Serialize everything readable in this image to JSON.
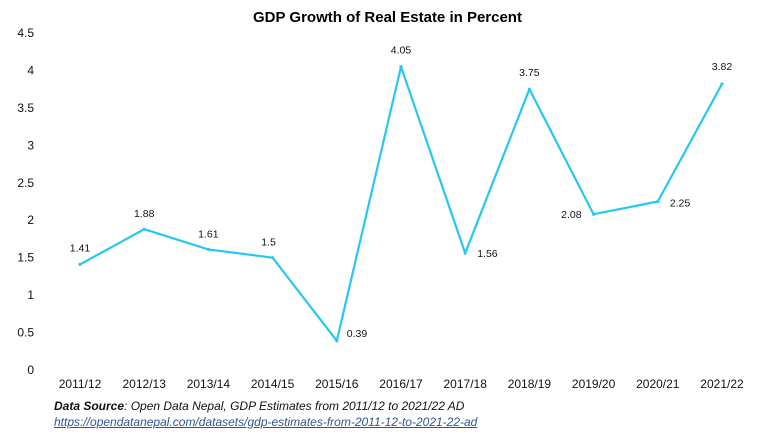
{
  "chart_data": {
    "type": "line",
    "title": "GDP Growth of Real Estate in Percent",
    "categories": [
      "2011/12",
      "2012/13",
      "2013/14",
      "2014/15",
      "2015/16",
      "2016/17",
      "2017/18",
      "2018/19",
      "2019/20",
      "2020/21",
      "2021/22"
    ],
    "values": [
      1.41,
      1.88,
      1.61,
      1.5,
      0.39,
      4.05,
      1.56,
      3.75,
      2.08,
      2.25,
      3.82
    ],
    "data_labels": [
      "1.41",
      "1.88",
      "1.61",
      "1.5",
      "0.39",
      "4.05",
      "1.56",
      "3.75",
      "2.08",
      "2.25",
      "3.82"
    ],
    "y_ticks": [
      0,
      0.5,
      1,
      1.5,
      2,
      2.5,
      3,
      3.5,
      4,
      4.5
    ],
    "y_tick_labels": [
      "0",
      "0.5",
      "1",
      "1.5",
      "2",
      "2.5",
      "3",
      "3.5",
      "4",
      "4.5"
    ],
    "ylim": [
      0,
      4.5
    ],
    "xlabel": "",
    "ylabel": "",
    "grid": false,
    "legend": "none",
    "line_color": "#27c7ef"
  },
  "source": {
    "label": "Data Source",
    "text": ": Open Data Nepal,  GDP Estimates from 2011/12 to 2021/22 AD",
    "link": "https://opendatanepal.com/datasets/gdp-estimates-from-2011-12-to-2021-22-ad"
  }
}
